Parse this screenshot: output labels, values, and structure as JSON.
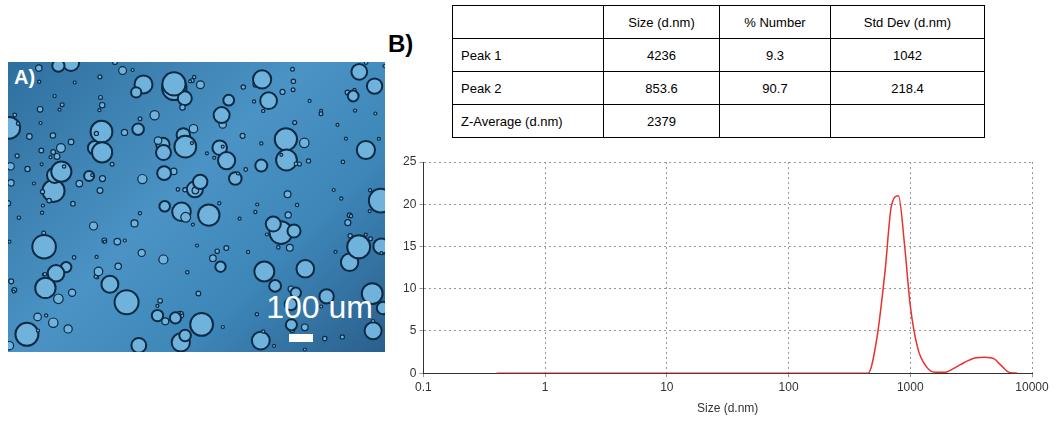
{
  "panels": [
    {
      "label": "A)",
      "scale_bar": "100 um"
    },
    {
      "label": "B)",
      "table": {
        "header": [
          null,
          "Size (d.nm)",
          "% Number",
          "Std Dev (d.nm)"
        ],
        "rows": [
          [
            "Peak 1",
            4236,
            9.3,
            1042
          ],
          [
            "Peak 2",
            853.6,
            90.7,
            218.4
          ],
          [
            "Z-Average (d.nm)",
            2379,
            null,
            null
          ]
        ]
      }
    }
  ],
  "chart_data": {
    "type": "line",
    "x_label": "Size (d.nm)",
    "log": "x",
    "grid": true,
    "color": "#e8302f",
    "x": [
      0.4,
      1,
      10,
      100,
      450,
      530,
      620,
      700,
      800,
      900,
      1000,
      1150,
      1350,
      1600,
      1900,
      2300,
      2800,
      3400,
      4100,
      4900,
      5600,
      6500,
      7600
    ],
    "values": [
      0,
      0,
      0,
      0,
      0,
      4,
      12,
      19.8,
      21,
      15,
      8,
      3,
      0.8,
      0.1,
      0.1,
      0.6,
      1.3,
      1.8,
      1.9,
      1.7,
      0.9,
      0.1,
      0
    ],
    "xlim": [
      0.1,
      10000
    ],
    "xticks": [
      0.1,
      1,
      10,
      100,
      1000,
      10000
    ],
    "ylim": [
      0,
      25
    ],
    "yticks": [
      0,
      5,
      10,
      15,
      20,
      25
    ]
  }
}
